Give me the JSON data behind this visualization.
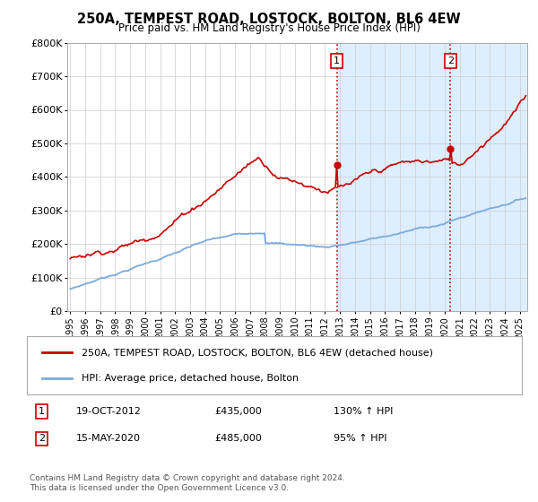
{
  "title": "250A, TEMPEST ROAD, LOSTOCK, BOLTON, BL6 4EW",
  "subtitle": "Price paid vs. HM Land Registry's House Price Index (HPI)",
  "legend_line1": "250A, TEMPEST ROAD, LOSTOCK, BOLTON, BL6 4EW (detached house)",
  "legend_line2": "HPI: Average price, detached house, Bolton",
  "annotation1_date": "19-OCT-2012",
  "annotation1_price": 435000,
  "annotation1_hpi": "130% ↑ HPI",
  "annotation2_date": "15-MAY-2020",
  "annotation2_price": 485000,
  "annotation2_hpi": "95% ↑ HPI",
  "footnote": "Contains HM Land Registry data © Crown copyright and database right 2024.\nThis data is licensed under the Open Government Licence v3.0.",
  "house_color": "#cc0000",
  "hpi_color": "#7aaadd",
  "vline_color": "#cc0000",
  "highlight_color": "#ddeeff",
  "ylim": [
    0,
    800000
  ],
  "ylabel_ticks": [
    0,
    100000,
    200000,
    300000,
    400000,
    500000,
    600000,
    700000,
    800000
  ],
  "ylabel_labels": [
    "£0",
    "£100K",
    "£200K",
    "£300K",
    "£400K",
    "£500K",
    "£600K",
    "£700K",
    "£800K"
  ],
  "xlim_start": 1994.8,
  "xlim_end": 2025.5
}
